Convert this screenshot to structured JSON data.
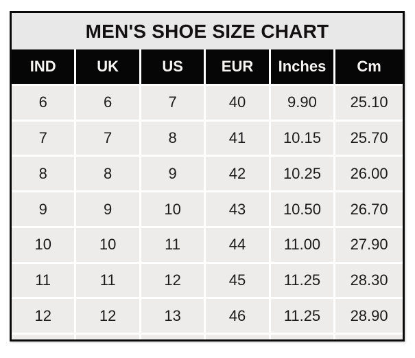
{
  "chart_data": {
    "type": "table",
    "title": "MEN'S SHOE SIZE CHART",
    "columns": [
      "IND",
      "UK",
      "US",
      "EUR",
      "Inches",
      "Cm"
    ],
    "rows": [
      [
        "6",
        "6",
        "7",
        "40",
        "9.90",
        "25.10"
      ],
      [
        "7",
        "7",
        "8",
        "41",
        "10.15",
        "25.70"
      ],
      [
        "8",
        "8",
        "9",
        "42",
        "10.25",
        "26.00"
      ],
      [
        "9",
        "9",
        "10",
        "43",
        "10.50",
        "26.70"
      ],
      [
        "10",
        "10",
        "11",
        "44",
        "11.00",
        "27.90"
      ],
      [
        "11",
        "11",
        "12",
        "45",
        "11.25",
        "28.30"
      ],
      [
        "12",
        "12",
        "13",
        "46",
        "11.25",
        "28.90"
      ]
    ]
  },
  "colors": {
    "page_bg": "#ffffff",
    "outer_border": "#0a0a0a",
    "title_bg": "#e9e8e8",
    "header_bg": "#060606",
    "header_text": "#f7f5f4",
    "cell_bg": "#edeceb",
    "grid_line": "#ffffff",
    "cell_text": "#1b1919"
  }
}
